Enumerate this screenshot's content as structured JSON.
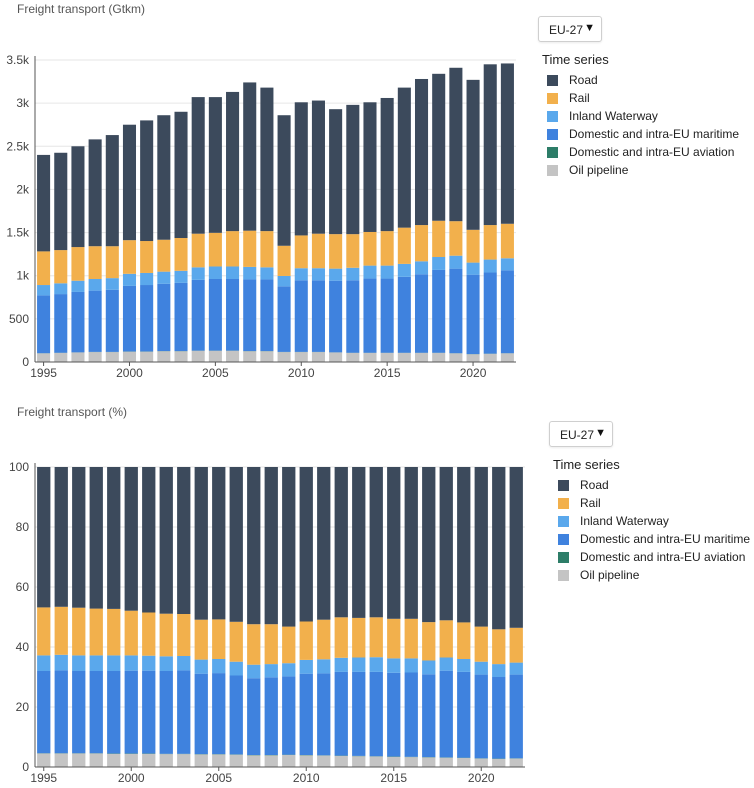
{
  "colors": {
    "road": "#3c4a5c",
    "rail": "#f2b04c",
    "inland_waterway": "#5aa8ec",
    "maritime": "#3f82de",
    "aviation": "#2d7d68",
    "oil_pipeline": "#c4c4c4",
    "grid": "#e6e6e6",
    "axis": "#555555"
  },
  "top": {
    "title": "Freight transport (Gtkm)",
    "region_select": {
      "value": "EU-27",
      "arrow": "▼"
    },
    "legend": {
      "heading": "Time series",
      "items": [
        {
          "label": "Road",
          "color": "#3c4a5c"
        },
        {
          "label": "Rail",
          "color": "#f2b04c"
        },
        {
          "label": "Inland Waterway",
          "color": "#5aa8ec"
        },
        {
          "label": "Domestic and intra-EU maritime",
          "color": "#3f82de"
        },
        {
          "label": "Domestic and intra-EU aviation",
          "color": "#2d7d68"
        },
        {
          "label": "Oil pipeline",
          "color": "#c4c4c4"
        }
      ]
    }
  },
  "bottom": {
    "title": "Freight transport (%)",
    "region_select": {
      "value": "EU-27",
      "arrow": "▼"
    },
    "legend": {
      "heading": "Time series",
      "items": [
        {
          "label": "Road",
          "color": "#3c4a5c"
        },
        {
          "label": "Rail",
          "color": "#f2b04c"
        },
        {
          "label": "Inland Waterway",
          "color": "#5aa8ec"
        },
        {
          "label": "Domestic and intra-EU maritime",
          "color": "#3f82de"
        },
        {
          "label": "Domestic and intra-EU aviation",
          "color": "#2d7d68"
        },
        {
          "label": "Oil pipeline",
          "color": "#c4c4c4"
        }
      ]
    }
  },
  "chart_data": [
    {
      "type": "bar",
      "stacked": true,
      "title": "Freight transport (Gtkm)",
      "unit": "Gtkm",
      "categories": [
        1995,
        1996,
        1997,
        1998,
        1999,
        2000,
        2001,
        2002,
        2003,
        2004,
        2005,
        2006,
        2007,
        2008,
        2009,
        2010,
        2011,
        2012,
        2013,
        2014,
        2015,
        2016,
        2017,
        2018,
        2019,
        2020,
        2021,
        2022
      ],
      "xticks": [
        "1995",
        "2000",
        "2005",
        "2010",
        "2015",
        "2020"
      ],
      "yticks": [
        {
          "value": 0,
          "label": "0"
        },
        {
          "value": 500,
          "label": "500"
        },
        {
          "value": 1000,
          "label": "1k"
        },
        {
          "value": 1500,
          "label": "1.5k"
        },
        {
          "value": 2000,
          "label": "2k"
        },
        {
          "value": 2500,
          "label": "2.5k"
        },
        {
          "value": 3000,
          "label": "3k"
        },
        {
          "value": 3500,
          "label": "3.5k"
        }
      ],
      "ylim": [
        0,
        3500
      ],
      "grid": true,
      "legend_position": "right",
      "series": [
        {
          "name": "Oil pipeline",
          "color": "#c4c4c4",
          "values": [
            100,
            105,
            110,
            115,
            115,
            120,
            120,
            125,
            125,
            130,
            130,
            130,
            125,
            125,
            115,
            115,
            115,
            110,
            105,
            105,
            105,
            105,
            105,
            105,
            100,
            90,
            95,
            100
          ]
        },
        {
          "name": "Domestic and intra-EU aviation",
          "color": "#2d7d68",
          "values": [
            2,
            2,
            2,
            2,
            2,
            2,
            2,
            2,
            2,
            2,
            2,
            2,
            2,
            2,
            2,
            2,
            2,
            2,
            2,
            2,
            2,
            2,
            2,
            2,
            2,
            2,
            2,
            2
          ]
        },
        {
          "name": "Domestic and intra-EU maritime",
          "color": "#3f82de",
          "values": [
            670,
            680,
            700,
            710,
            720,
            760,
            770,
            780,
            790,
            820,
            830,
            830,
            830,
            830,
            760,
            830,
            830,
            830,
            840,
            860,
            860,
            880,
            910,
            960,
            980,
            920,
            940,
            960
          ]
        },
        {
          "name": "Inland Waterway",
          "color": "#5aa8ec",
          "values": [
            120,
            125,
            130,
            135,
            135,
            140,
            140,
            140,
            140,
            145,
            145,
            145,
            145,
            140,
            120,
            140,
            140,
            140,
            145,
            150,
            150,
            150,
            150,
            150,
            150,
            140,
            150,
            140
          ]
        },
        {
          "name": "Rail",
          "color": "#f2b04c",
          "values": [
            390,
            385,
            390,
            380,
            370,
            390,
            370,
            370,
            380,
            390,
            390,
            410,
            420,
            420,
            350,
            380,
            400,
            400,
            390,
            390,
            400,
            420,
            420,
            420,
            400,
            380,
            400,
            400
          ]
        },
        {
          "name": "Road",
          "color": "#3c4a5c",
          "values": [
            1118,
            1128,
            1168,
            1238,
            1288,
            1338,
            1398,
            1443,
            1463,
            1583,
            1573,
            1613,
            1718,
            1663,
            1513,
            1543,
            1543,
            1448,
            1498,
            1503,
            1543,
            1623,
            1693,
            1703,
            1778,
            1738,
            1863,
            1858
          ]
        }
      ]
    },
    {
      "type": "bar",
      "stacked": true,
      "title": "Freight transport (%)",
      "unit": "%",
      "categories": [
        1995,
        1996,
        1997,
        1998,
        1999,
        2000,
        2001,
        2002,
        2003,
        2004,
        2005,
        2006,
        2007,
        2008,
        2009,
        2010,
        2011,
        2012,
        2013,
        2014,
        2015,
        2016,
        2017,
        2018,
        2019,
        2020,
        2021,
        2022
      ],
      "xticks": [
        "1995",
        "2000",
        "2005",
        "2010",
        "2015",
        "2020"
      ],
      "yticks": [
        {
          "value": 0,
          "label": "0"
        },
        {
          "value": 20,
          "label": "20"
        },
        {
          "value": 40,
          "label": "40"
        },
        {
          "value": 60,
          "label": "60"
        },
        {
          "value": 80,
          "label": "80"
        },
        {
          "value": 100,
          "label": "100"
        }
      ],
      "ylim": [
        0,
        100
      ],
      "grid": true,
      "legend_position": "right",
      "series": [
        {
          "name": "Oil pipeline",
          "color": "#c4c4c4",
          "values": [
            4.5,
            4.5,
            4.5,
            4.5,
            4.4,
            4.4,
            4.4,
            4.3,
            4.3,
            4.2,
            4.2,
            4.1,
            3.9,
            3.9,
            4.0,
            3.9,
            3.8,
            3.7,
            3.6,
            3.5,
            3.4,
            3.3,
            3.2,
            3.1,
            3.0,
            2.8,
            2.7,
            2.8
          ]
        },
        {
          "name": "Domestic and intra-EU aviation",
          "color": "#2d7d68",
          "values": [
            0.1,
            0.1,
            0.1,
            0.1,
            0.1,
            0.1,
            0.1,
            0.1,
            0.1,
            0.1,
            0.1,
            0.1,
            0.1,
            0.1,
            0.1,
            0.1,
            0.1,
            0.1,
            0.1,
            0.1,
            0.1,
            0.1,
            0.1,
            0.1,
            0.1,
            0.1,
            0.1,
            0.1
          ]
        },
        {
          "name": "Domestic and intra-EU maritime",
          "color": "#3f82de",
          "values": [
            27.4,
            27.6,
            27.4,
            27.4,
            27.5,
            27.6,
            27.6,
            27.6,
            27.8,
            26.8,
            27.0,
            26.3,
            25.6,
            25.9,
            26.1,
            27.1,
            27.3,
            27.9,
            28.0,
            28.1,
            27.9,
            28.1,
            27.6,
            28.9,
            28.6,
            27.9,
            27.2,
            27.9
          ]
        },
        {
          "name": "Inland Waterway",
          "color": "#5aa8ec",
          "values": [
            5.2,
            5.2,
            5.2,
            5.2,
            5.2,
            5.1,
            5.0,
            4.9,
            4.8,
            4.7,
            4.7,
            4.6,
            4.5,
            4.4,
            4.4,
            4.6,
            4.7,
            4.7,
            4.8,
            4.9,
            4.8,
            4.7,
            4.6,
            4.4,
            4.3,
            4.3,
            4.3,
            4.0
          ]
        },
        {
          "name": "Rail",
          "color": "#f2b04c",
          "values": [
            16.0,
            16.0,
            15.9,
            15.6,
            15.5,
            14.9,
            14.4,
            14.2,
            14.0,
            13.3,
            13.2,
            13.3,
            13.5,
            13.3,
            12.2,
            12.8,
            13.2,
            13.5,
            13.2,
            13.3,
            13.2,
            13.2,
            12.8,
            12.4,
            12.2,
            11.7,
            11.6,
            11.6
          ]
        },
        {
          "name": "Road",
          "color": "#3c4a5c",
          "values": [
            46.8,
            46.6,
            46.9,
            47.2,
            47.3,
            47.9,
            48.5,
            48.9,
            49.0,
            50.9,
            50.8,
            51.6,
            52.4,
            52.4,
            53.2,
            51.5,
            50.9,
            50.1,
            50.3,
            50.1,
            50.6,
            50.6,
            51.7,
            51.1,
            51.8,
            53.2,
            54.1,
            53.6
          ]
        }
      ]
    }
  ]
}
